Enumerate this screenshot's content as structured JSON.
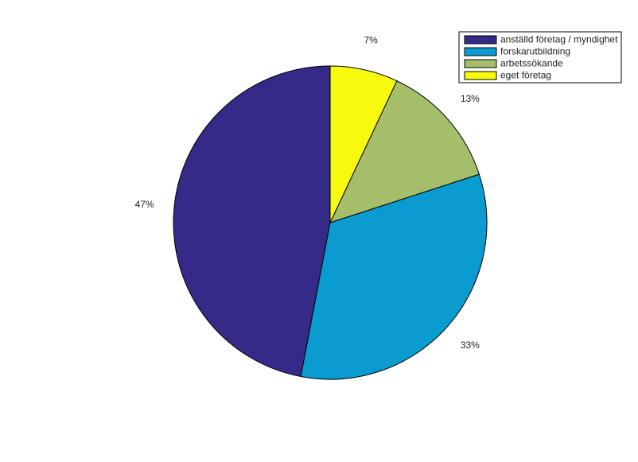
{
  "chart_data": {
    "type": "pie",
    "categories": [
      "anställd företag / myndighet",
      "forskarutbildning",
      "arbetssökande",
      "eget företag"
    ],
    "values": [
      47,
      33,
      13,
      7
    ],
    "value_labels": [
      "47%",
      "33%",
      "13%",
      "7%"
    ],
    "colors": [
      "#352a87",
      "#0a9bd0",
      "#a5be6a",
      "#f8fa0d"
    ],
    "legend": "upper right"
  }
}
